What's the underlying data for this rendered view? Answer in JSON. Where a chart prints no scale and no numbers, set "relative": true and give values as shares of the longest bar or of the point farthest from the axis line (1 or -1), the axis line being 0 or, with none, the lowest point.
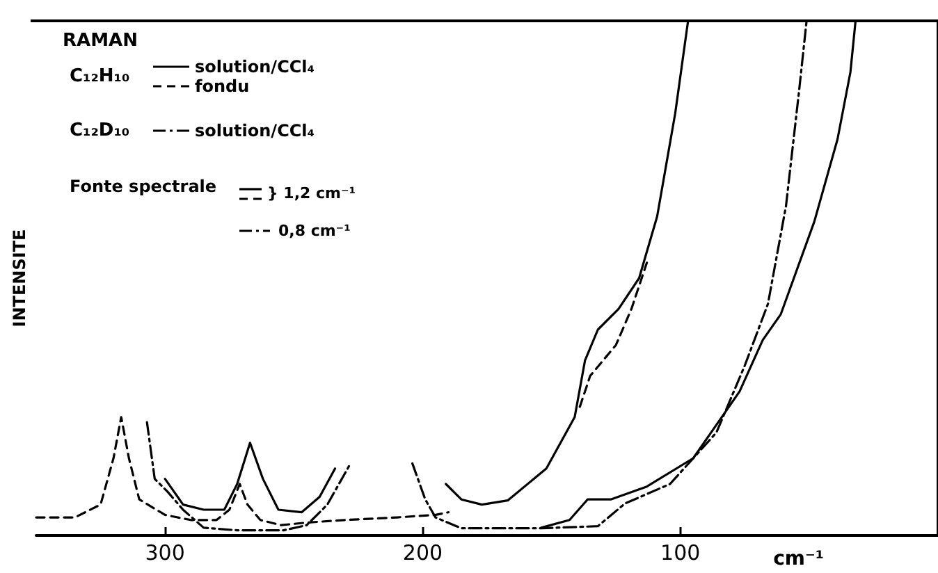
{
  "chart_data": {
    "type": "line",
    "title": "RAMAN",
    "xlabel": "cm⁻¹",
    "ylabel": "INTENSITE",
    "relative": true,
    "xlim": [
      350,
      0
    ],
    "xticks": [
      300,
      200,
      100
    ],
    "grid": false,
    "legend": "top left",
    "marker": "none",
    "annotations": [
      "C₁₂H₁₀",
      "C₁₂D₁₀",
      "Fonte spectrale",
      "} 1,2 cm⁻¹",
      "0,8 cm⁻¹"
    ],
    "series": [
      {
        "name": "solution/CCl₄",
        "color": "#000000",
        "line_style": "solid",
        "x": [
          300,
          293,
          285,
          277,
          272,
          267,
          262,
          256,
          247,
          240,
          234,
          null,
          191,
          185,
          177,
          167,
          152,
          141,
          137,
          132,
          124,
          116,
          109,
          102,
          97,
          null,
          154,
          143,
          136,
          127,
          113,
          95,
          77,
          68,
          61,
          48,
          39,
          34,
          32
        ],
        "values": [
          0.11,
          0.06,
          0.05,
          0.05,
          0.1,
          0.18,
          0.11,
          0.05,
          0.045,
          0.075,
          0.13,
          null,
          0.1,
          0.07,
          0.06,
          0.068,
          0.13,
          0.23,
          0.34,
          0.4,
          0.44,
          0.5,
          0.62,
          0.82,
          1.0,
          null,
          0.015,
          0.03,
          0.07,
          0.07,
          0.095,
          0.15,
          0.28,
          0.38,
          0.43,
          0.61,
          0.77,
          0.9,
          1.0
        ]
      },
      {
        "name": "fondu",
        "color": "#000000",
        "line_style": "dashed",
        "x": [
          350,
          335,
          325,
          320,
          317,
          314,
          310,
          300,
          290,
          280,
          275,
          271,
          268,
          263,
          255,
          245,
          230,
          210,
          195,
          190,
          null,
          139,
          135,
          130,
          125,
          119,
          113
        ],
        "values": [
          0.035,
          0.035,
          0.06,
          0.15,
          0.23,
          0.15,
          0.07,
          0.04,
          0.03,
          0.03,
          0.05,
          0.1,
          0.06,
          0.03,
          0.02,
          0.025,
          0.03,
          0.035,
          0.04,
          0.045,
          null,
          0.25,
          0.31,
          0.34,
          0.37,
          0.44,
          0.53
        ]
      },
      {
        "name": "solution/CCl₄",
        "color": "#000000",
        "line_style": "dashdot",
        "x": [
          307,
          304,
          299,
          293,
          285,
          272,
          254,
          245,
          237,
          228,
          null,
          204,
          199,
          195,
          185,
          154,
          132,
          121.5,
          104,
          86,
          75,
          66,
          59,
          54,
          51
        ],
        "values": [
          0.22,
          0.11,
          0.085,
          0.05,
          0.015,
          0.01,
          0.01,
          0.02,
          0.06,
          0.14,
          null,
          0.14,
          0.07,
          0.035,
          0.014,
          0.014,
          0.018,
          0.062,
          0.1,
          0.2,
          0.33,
          0.45,
          0.64,
          0.86,
          1.0
        ]
      }
    ]
  }
}
